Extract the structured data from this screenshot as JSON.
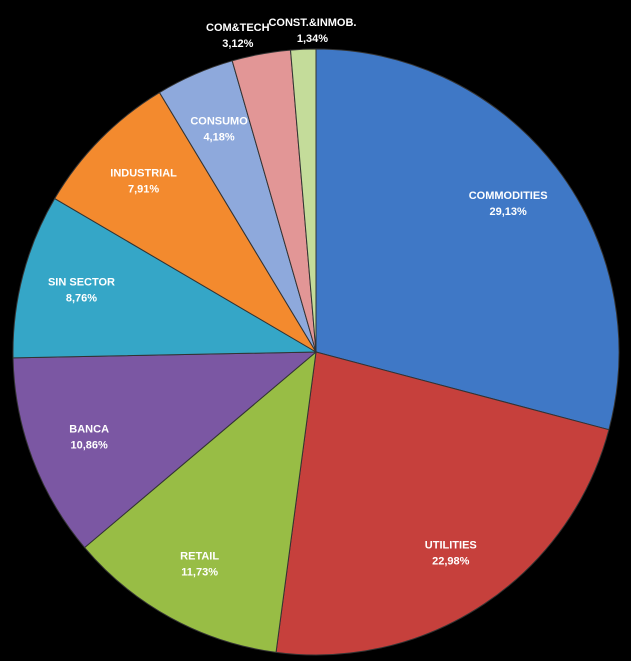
{
  "chart_data": {
    "type": "pie",
    "categories": [
      "COMMODITIES",
      "UTILITIES",
      "RETAIL",
      "BANCA",
      "SIN SECTOR",
      "INDUSTRIAL",
      "CONSUMO",
      "COM&TECH",
      "CONST.&INMOB."
    ],
    "values": [
      29.13,
      22.98,
      11.73,
      10.86,
      8.76,
      7.91,
      4.18,
      3.12,
      1.34
    ],
    "value_labels": [
      "29,13%",
      "22,98%",
      "11,73%",
      "10,86%",
      "8,76%",
      "7,91%",
      "4,18%",
      "3,12%",
      "1,34%"
    ],
    "colors": [
      "#3f78c6",
      "#c6403c",
      "#98bd45",
      "#7b57a3",
      "#35a6c7",
      "#f38a2e",
      "#8ea9dc",
      "#e29696",
      "#c4dc9a"
    ]
  }
}
